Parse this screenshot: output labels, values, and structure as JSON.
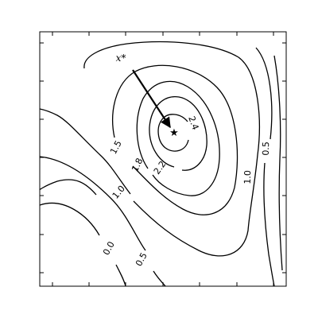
{
  "chart_data": {
    "type": "contour",
    "title": "",
    "xlabel": "",
    "ylabel": "",
    "xticklabels": [],
    "yticklabels": [],
    "grid": false,
    "levels": [
      {
        "value": 0.0,
        "label": "0.0"
      },
      {
        "value": 0.5,
        "label": "0.5"
      },
      {
        "value": 1.0,
        "label": "1.0"
      },
      {
        "value": 1.5,
        "label": "1.5"
      },
      {
        "value": 1.8,
        "label": "1.8"
      },
      {
        "value": 2.2,
        "label": "2.2"
      },
      {
        "value": 2.4,
        "label": "2.4"
      }
    ],
    "maximum": {
      "marker": "star",
      "label": "x*"
    },
    "arrow": {
      "to": "maximum"
    }
  }
}
